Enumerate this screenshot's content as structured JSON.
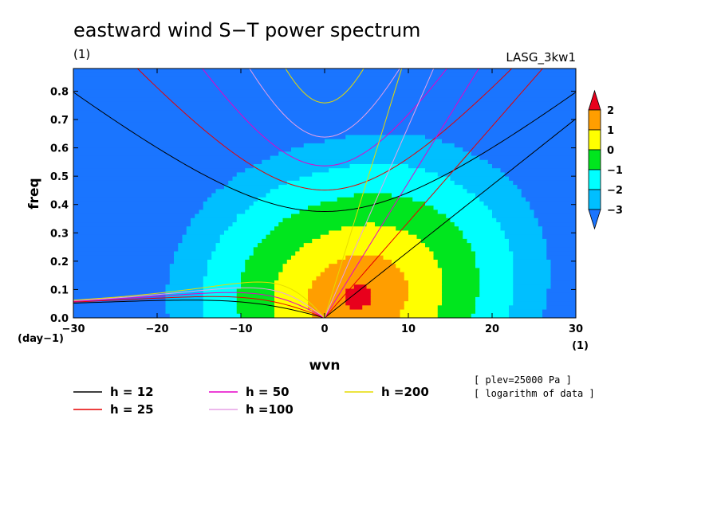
{
  "header": {
    "title": "eastward wind S−T power spectrum",
    "units_top": "(1)",
    "run_name": "LASG_3kw1"
  },
  "notes": {
    "plev": "[ plev=25000 Pa ]",
    "transform": "[ logarithm of data ]"
  },
  "chart_data": {
    "type": "contour",
    "xlabel": "wvn",
    "ylabel": "freq",
    "x_unit_label": "(1)",
    "y_unit_label": "(day−1)",
    "xlim": [
      -30,
      30
    ],
    "ylim": [
      0,
      0.88
    ],
    "xticks": [
      -30,
      -20,
      -10,
      0,
      10,
      20,
      30
    ],
    "xtick_labels": [
      "−30",
      "−20",
      "−10",
      "0",
      "10",
      "20",
      "30"
    ],
    "yticks": [
      0.0,
      0.1,
      0.2,
      0.3,
      0.4,
      0.5,
      0.6,
      0.7,
      0.8
    ],
    "ytick_labels": [
      "0.0",
      "0.1",
      "0.2",
      "0.3",
      "0.4",
      "0.5",
      "0.6",
      "0.7",
      "0.8"
    ],
    "colorbar": {
      "levels": [
        2,
        1,
        0,
        -1,
        -2,
        -3
      ],
      "level_labels": [
        "2",
        "1",
        "0",
        "−1",
        "−2",
        "−3"
      ],
      "colors": [
        "#e8001c",
        "#ff9e00",
        "#ffff00",
        "#00e61e",
        "#00ffff",
        "#00bfff",
        "#1a75ff"
      ]
    },
    "dispersion_curves": [
      {
        "name": "h = 12",
        "h": 12,
        "color": "#000000"
      },
      {
        "name": "h = 25",
        "h": 25,
        "color": "#e60000"
      },
      {
        "name": "h = 50",
        "h": 50,
        "color": "#e600c8"
      },
      {
        "name": "h =100",
        "h": 100,
        "color": "#e6a0e6"
      },
      {
        "name": "h =200",
        "h": 200,
        "color": "#e6dc00"
      }
    ],
    "field_model": {
      "peak_x": 4,
      "peak_y": 0.06,
      "peak_value": 2.4,
      "xscale": 22,
      "yscale": 0.55,
      "ridge_slope": 0.035
    }
  }
}
